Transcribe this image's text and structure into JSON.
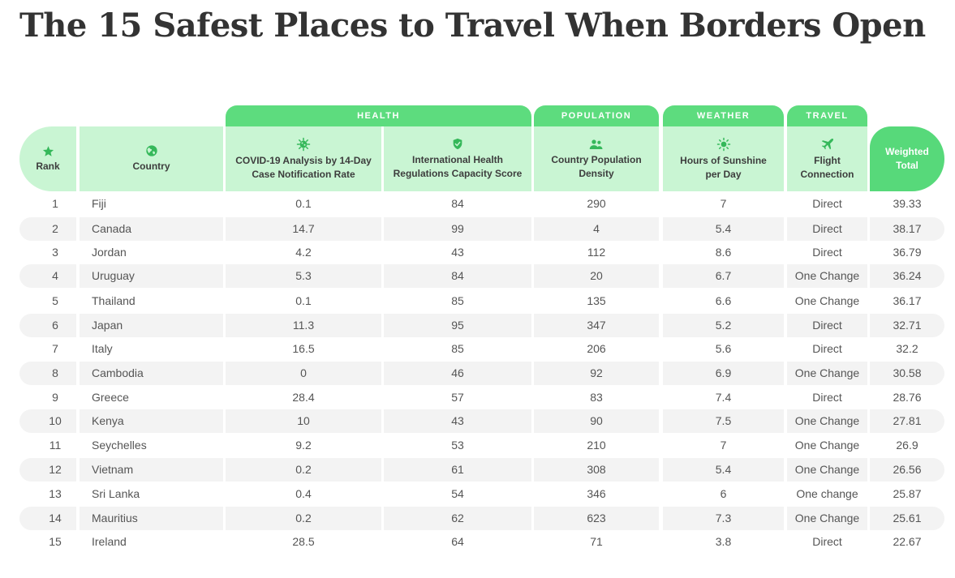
{
  "title": "The 15 Safest Places to Travel When Borders Open",
  "groups": {
    "health": "HEALTH",
    "population": "POPULATION",
    "weather": "WEATHER",
    "travel": "TRAVEL"
  },
  "headers": {
    "rank": "Rank",
    "country": "Country",
    "covid": "COVID-19 Analysis by 14-Day Case Notification Rate",
    "ihr": "International Health Regulations Capacity Score",
    "density": "Country Population Density",
    "sunshine": "Hours of Sunshine per Day",
    "flight": "Flight Connection",
    "total": "Weighted Total"
  },
  "icons": {
    "rank": "star-icon",
    "country": "globe-icon",
    "covid": "virus-icon",
    "ihr": "shield-check-icon",
    "density": "people-icon",
    "sunshine": "sun-icon",
    "flight": "airplane-icon"
  },
  "colors": {
    "group_green": "#5ddc7e",
    "header_light_green": "#c9f5d3",
    "total_green": "#57d97a",
    "stripe_gray": "#f3f3f3"
  },
  "rows": [
    {
      "rank": "1",
      "country": "Fiji",
      "covid": "0.1",
      "ihr": "84",
      "density": "290",
      "sunshine": "7",
      "flight": "Direct",
      "total": "39.33"
    },
    {
      "rank": "2",
      "country": "Canada",
      "covid": "14.7",
      "ihr": "99",
      "density": "4",
      "sunshine": "5.4",
      "flight": "Direct",
      "total": "38.17"
    },
    {
      "rank": "3",
      "country": "Jordan",
      "covid": "4.2",
      "ihr": "43",
      "density": "112",
      "sunshine": "8.6",
      "flight": "Direct",
      "total": "36.79"
    },
    {
      "rank": "4",
      "country": "Uruguay",
      "covid": "5.3",
      "ihr": "84",
      "density": "20",
      "sunshine": "6.7",
      "flight": "One Change",
      "total": "36.24"
    },
    {
      "rank": "5",
      "country": "Thailand",
      "covid": "0.1",
      "ihr": "85",
      "density": "135",
      "sunshine": "6.6",
      "flight": "One Change",
      "total": "36.17"
    },
    {
      "rank": "6",
      "country": "Japan",
      "covid": "11.3",
      "ihr": "95",
      "density": "347",
      "sunshine": "5.2",
      "flight": "Direct",
      "total": "32.71"
    },
    {
      "rank": "7",
      "country": "Italy",
      "covid": "16.5",
      "ihr": "85",
      "density": "206",
      "sunshine": "5.6",
      "flight": "Direct",
      "total": "32.2"
    },
    {
      "rank": "8",
      "country": "Cambodia",
      "covid": "0",
      "ihr": "46",
      "density": "92",
      "sunshine": "6.9",
      "flight": "One Change",
      "total": "30.58"
    },
    {
      "rank": "9",
      "country": "Greece",
      "covid": "28.4",
      "ihr": "57",
      "density": "83",
      "sunshine": "7.4",
      "flight": "Direct",
      "total": "28.76"
    },
    {
      "rank": "10",
      "country": "Kenya",
      "covid": "10",
      "ihr": "43",
      "density": "90",
      "sunshine": "7.5",
      "flight": "One Change",
      "total": "27.81"
    },
    {
      "rank": "11",
      "country": "Seychelles",
      "covid": "9.2",
      "ihr": "53",
      "density": "210",
      "sunshine": "7",
      "flight": "One Change",
      "total": "26.9"
    },
    {
      "rank": "12",
      "country": "Vietnam",
      "covid": "0.2",
      "ihr": "61",
      "density": "308",
      "sunshine": "5.4",
      "flight": "One Change",
      "total": "26.56"
    },
    {
      "rank": "13",
      "country": "Sri Lanka",
      "covid": "0.4",
      "ihr": "54",
      "density": "346",
      "sunshine": "6",
      "flight": "One change",
      "total": "25.87"
    },
    {
      "rank": "14",
      "country": "Mauritius",
      "covid": "0.2",
      "ihr": "62",
      "density": "623",
      "sunshine": "7.3",
      "flight": "One Change",
      "total": "25.61"
    },
    {
      "rank": "15",
      "country": "Ireland",
      "covid": "28.5",
      "ihr": "64",
      "density": "71",
      "sunshine": "3.8",
      "flight": "Direct",
      "total": "22.67"
    }
  ]
}
